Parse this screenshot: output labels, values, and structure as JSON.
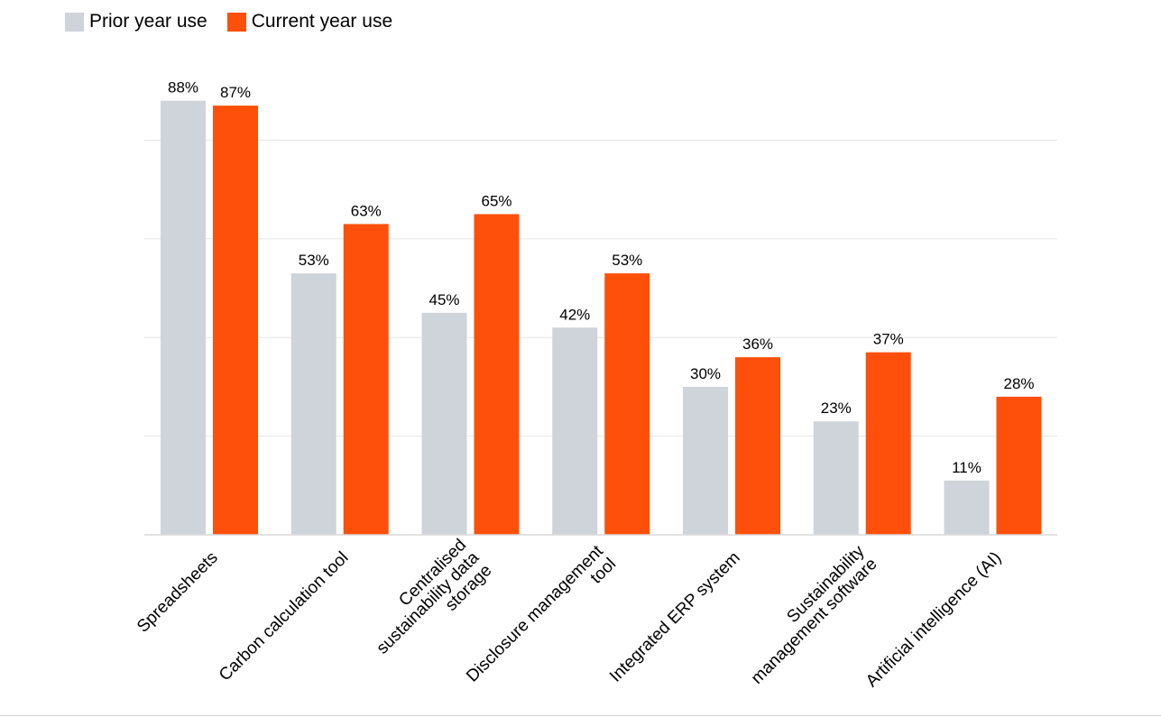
{
  "chart_data": {
    "type": "bar",
    "title": "",
    "xlabel": "",
    "ylabel": "",
    "ylim": [
      0,
      100
    ],
    "grid": true,
    "legend_position": "top-left",
    "categories": [
      "Spreadsheets",
      "Carbon calculation tool",
      "Centralised sustainability data storage",
      "Disclosure management tool",
      "Integrated ERP system",
      "Sustainability management software",
      "Artificial intelligence (AI)"
    ],
    "category_lines": [
      [
        "Spreadsheets"
      ],
      [
        "Carbon calculation tool"
      ],
      [
        "Centralised",
        "sustainability data",
        "storage"
      ],
      [
        "Disclosure management",
        "tool"
      ],
      [
        "Integrated ERP system"
      ],
      [
        "Sustainability",
        "management software"
      ],
      [
        "Artificial intelligence (AI)"
      ]
    ],
    "series": [
      {
        "name": "Prior year use",
        "color": "#cfd3da",
        "values": [
          88,
          53,
          45,
          42,
          30,
          23,
          11
        ]
      },
      {
        "name": "Current year use",
        "color": "#fe500a",
        "values": [
          87,
          63,
          65,
          53,
          36,
          37,
          28
        ]
      }
    ],
    "value_suffix": "%"
  }
}
